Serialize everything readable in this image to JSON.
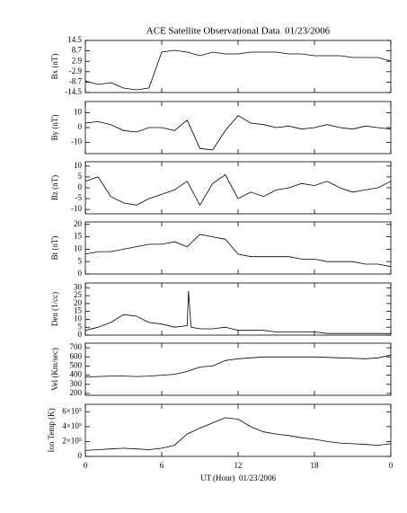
{
  "chart_data": [
    {
      "type": "line",
      "title": "ACE Satellite Observational Data  01/23/2006",
      "ylabel": "Bx (nT)",
      "xlim": [
        0,
        24
      ],
      "ylim": [
        -14.5,
        14.5
      ],
      "yticks": [
        14.5,
        8.7,
        2.9,
        -2.9,
        -8.7,
        -14.5
      ],
      "color": "#000000",
      "x": [
        0,
        1,
        2,
        3,
        4,
        5,
        6,
        7,
        8,
        9,
        10,
        11,
        12,
        13,
        14,
        15,
        16,
        17,
        18,
        19,
        20,
        21,
        22,
        23,
        24
      ],
      "values": [
        -8,
        -10,
        -9,
        -12,
        -13,
        -12,
        8,
        9,
        8,
        6,
        8,
        7,
        7,
        8,
        8,
        8,
        7,
        7,
        6,
        6,
        6,
        5,
        5,
        5,
        3
      ]
    },
    {
      "type": "line",
      "ylabel": "By (nT)",
      "xlim": [
        0,
        24
      ],
      "ylim": [
        -17.5,
        17.5
      ],
      "yticks": [
        10,
        0,
        -10
      ],
      "color": "#000000",
      "x": [
        0,
        1,
        2,
        3,
        4,
        5,
        6,
        7,
        8,
        9,
        10,
        11,
        12,
        13,
        14,
        15,
        16,
        17,
        18,
        19,
        20,
        21,
        22,
        23,
        24
      ],
      "values": [
        3,
        4,
        2,
        -2,
        -3,
        0,
        0,
        -2,
        5,
        -14,
        -15,
        -2,
        8,
        3,
        2,
        0,
        1,
        -1,
        0,
        2,
        0,
        -1,
        1,
        0,
        -1
      ]
    },
    {
      "type": "line",
      "ylabel": "Bz (nT)",
      "xlim": [
        0,
        24
      ],
      "ylim": [
        -12,
        12
      ],
      "yticks": [
        10,
        5,
        0,
        -5,
        -10
      ],
      "color": "#000000",
      "x": [
        0,
        1,
        2,
        3,
        4,
        5,
        6,
        7,
        8,
        9,
        10,
        11,
        12,
        13,
        14,
        15,
        16,
        17,
        18,
        19,
        20,
        21,
        22,
        23,
        24
      ],
      "values": [
        3,
        5,
        -4,
        -7,
        -8,
        -5,
        -3,
        -1,
        3,
        -8,
        2,
        6,
        -5,
        -2,
        -4,
        -1,
        0,
        2,
        1,
        3,
        0,
        -2,
        -1,
        0,
        3
      ]
    },
    {
      "type": "line",
      "ylabel": "Bt (nT)",
      "xlim": [
        0,
        24
      ],
      "ylim": [
        0,
        21
      ],
      "yticks": [
        20,
        15,
        10,
        5,
        0
      ],
      "color": "#000000",
      "x": [
        0,
        1,
        2,
        3,
        4,
        5,
        6,
        7,
        8,
        9,
        10,
        11,
        12,
        13,
        14,
        15,
        16,
        17,
        18,
        19,
        20,
        21,
        22,
        23,
        24
      ],
      "values": [
        8,
        9,
        9,
        10,
        11,
        12,
        12,
        13,
        11,
        16,
        15,
        14,
        8,
        7,
        7,
        7,
        7,
        6,
        6,
        5,
        5,
        5,
        4,
        4,
        3
      ]
    },
    {
      "type": "line",
      "ylabel": "Den (1/cc)",
      "xlim": [
        0,
        24
      ],
      "ylim": [
        0,
        33
      ],
      "yticks": [
        30,
        25,
        20,
        15,
        10,
        5,
        0
      ],
      "color": "#000000",
      "x": [
        0,
        1,
        2,
        3,
        4,
        5,
        6,
        7,
        8,
        8.1,
        8.3,
        9,
        10,
        11,
        12,
        13,
        14,
        15,
        16,
        17,
        18,
        19,
        20,
        21,
        22,
        23,
        24
      ],
      "values": [
        3,
        5,
        8,
        13,
        12,
        8,
        7,
        5,
        6,
        28,
        5,
        4,
        4,
        5,
        3,
        3,
        3,
        2,
        2,
        2,
        2,
        1,
        1,
        1,
        1,
        1,
        1
      ]
    },
    {
      "type": "line",
      "ylabel": "Vel (Km/sec)",
      "xlim": [
        0,
        24
      ],
      "ylim": [
        180,
        750
      ],
      "yticks": [
        700,
        600,
        500,
        400,
        300,
        200
      ],
      "color": "#000000",
      "x": [
        0,
        1,
        2,
        3,
        4,
        5,
        6,
        7,
        8,
        9,
        10,
        11,
        12,
        13,
        14,
        15,
        16,
        17,
        18,
        19,
        20,
        21,
        22,
        23,
        24
      ],
      "values": [
        380,
        385,
        390,
        390,
        385,
        390,
        400,
        410,
        440,
        490,
        500,
        560,
        580,
        590,
        600,
        600,
        600,
        600,
        600,
        595,
        590,
        585,
        580,
        590,
        620
      ]
    },
    {
      "type": "line",
      "ylabel": "Ion Temp (K)",
      "xlabel": "UT (Hour)  01/23/2006",
      "xlim": [
        0,
        24
      ],
      "xticks": [
        0,
        6,
        12,
        18,
        {
          "value": 24,
          "label": "0"
        }
      ],
      "ylim": [
        0,
        700000
      ],
      "yticks": [
        0,
        {
          "value": 200000,
          "label": "2×10⁵"
        },
        {
          "value": 400000,
          "label": "4×10⁵"
        },
        {
          "value": 600000,
          "label": "6×10⁵"
        }
      ],
      "color": "#000000",
      "x": [
        0,
        1,
        2,
        3,
        4,
        5,
        6,
        7,
        8,
        9,
        10,
        11,
        12,
        13,
        14,
        15,
        16,
        17,
        18,
        19,
        20,
        21,
        22,
        23,
        24
      ],
      "values": [
        80000,
        90000,
        100000,
        110000,
        100000,
        90000,
        110000,
        150000,
        300000,
        380000,
        450000,
        520000,
        500000,
        400000,
        330000,
        300000,
        280000,
        250000,
        230000,
        200000,
        180000,
        170000,
        160000,
        150000,
        170000
      ]
    }
  ]
}
